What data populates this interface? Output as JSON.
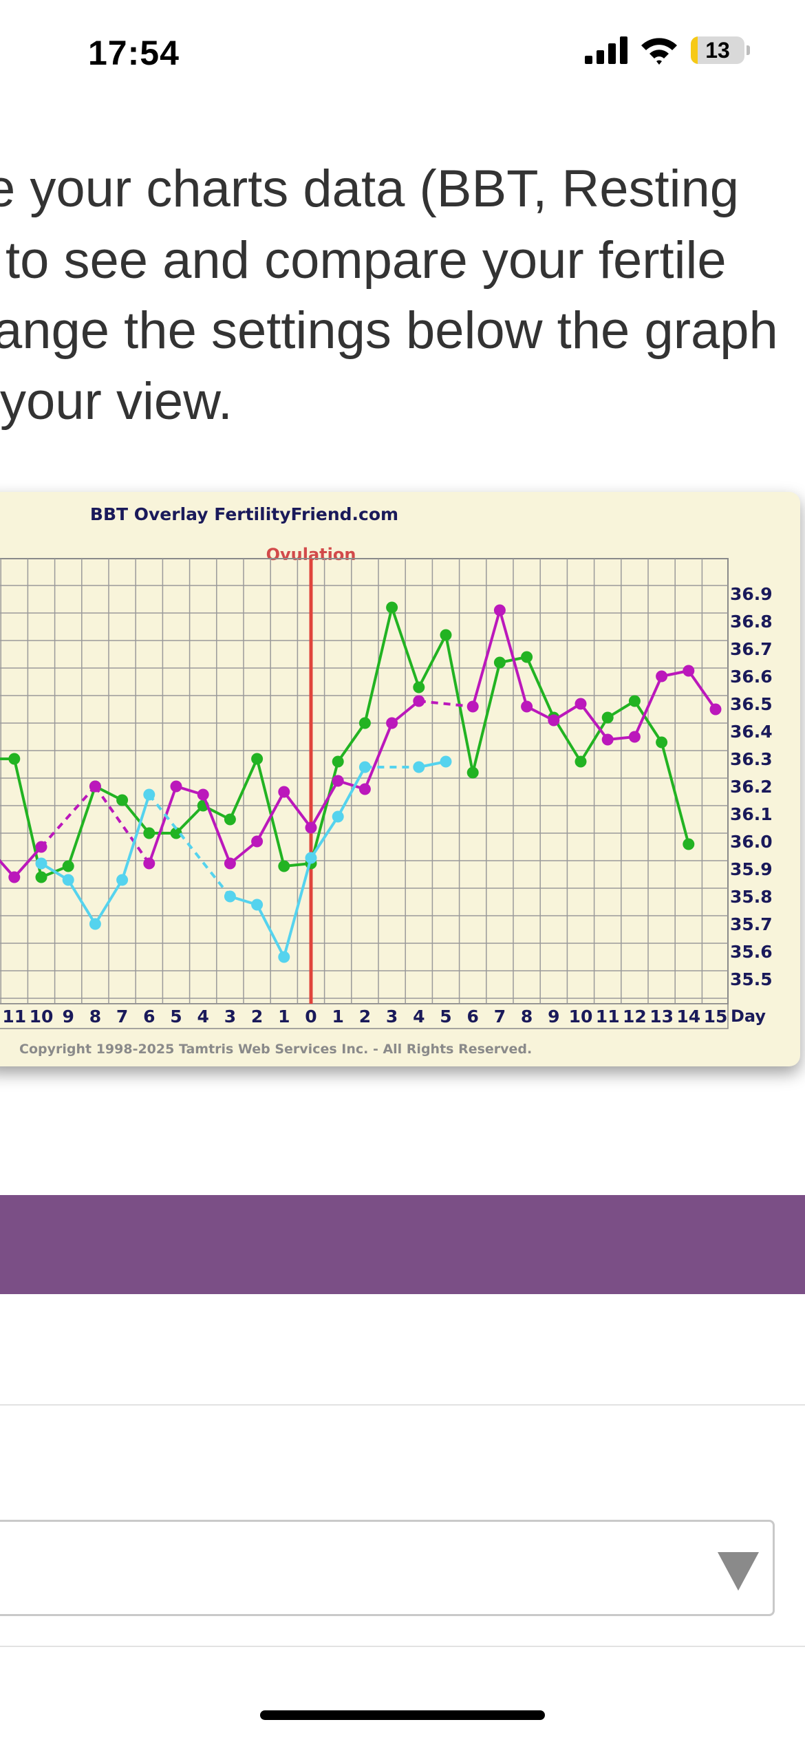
{
  "status_bar": {
    "time": "17:54",
    "battery_level": 13,
    "battery_text": "13",
    "battery_color": "#f6c915"
  },
  "intro": {
    "lines": [
      "e your charts data (BBT, Resting",
      " to see and compare your fertile",
      "ange the settings below the graph",
      " your view."
    ]
  },
  "chart": {
    "title": "BBT Overlay FertilityFriend.com",
    "ovulation_label": "Ovulation",
    "copyright": "Copyright 1998-2025 Tamtris Web Services Inc. - All Rights Reserved.",
    "day_axis_label": "Day"
  },
  "chart_data": {
    "type": "line",
    "title": "BBT Overlay FertilityFriend.com",
    "xlabel": "Day",
    "ylabel": "",
    "x_ticks": [
      -11,
      -10,
      -9,
      -8,
      -7,
      -6,
      -5,
      -4,
      -3,
      -2,
      -1,
      0,
      1,
      2,
      3,
      4,
      5,
      6,
      7,
      8,
      9,
      10,
      11,
      12,
      13,
      14,
      15
    ],
    "x_tick_labels": [
      "11",
      "10",
      "9",
      "8",
      "7",
      "6",
      "5",
      "4",
      "3",
      "2",
      "1",
      "0",
      "1",
      "2",
      "3",
      "4",
      "5",
      "6",
      "7",
      "8",
      "9",
      "10",
      "11",
      "12",
      "13",
      "14",
      "15"
    ],
    "y_ticks": [
      35.5,
      35.6,
      35.7,
      35.8,
      35.9,
      36.0,
      36.1,
      36.2,
      36.3,
      36.4,
      36.5,
      36.6,
      36.7,
      36.8,
      36.9
    ],
    "ylim": [
      35.4,
      37.0
    ],
    "ovulation_day": 0,
    "grid": true,
    "series": [
      {
        "color": "#22b322",
        "points": [
          [
            -12,
            36.3
          ],
          [
            -11,
            36.3
          ],
          [
            -10,
            35.87
          ],
          [
            -9,
            35.91
          ],
          [
            -8,
            36.2
          ],
          [
            -7,
            36.15
          ],
          [
            -6,
            36.03
          ],
          [
            -5,
            36.03
          ],
          [
            -4,
            36.13
          ],
          [
            -3,
            36.08
          ],
          [
            -2,
            36.3
          ],
          [
            -1,
            35.91
          ],
          [
            0,
            35.92
          ],
          [
            1,
            36.29
          ],
          [
            2,
            36.43
          ],
          [
            3,
            36.85
          ],
          [
            4,
            36.56
          ],
          [
            5,
            36.75
          ],
          [
            6,
            36.25
          ],
          [
            7,
            36.65
          ],
          [
            8,
            36.67
          ],
          [
            9,
            36.45
          ],
          [
            10,
            36.29
          ],
          [
            11,
            36.45
          ],
          [
            12,
            36.51
          ],
          [
            13,
            36.36
          ],
          [
            14,
            35.99
          ]
        ],
        "dashed_segments": []
      },
      {
        "color": "#bb18bb",
        "points": [
          [
            -12,
            35.98
          ],
          [
            -11,
            35.87
          ],
          [
            -10,
            35.98
          ],
          [
            -8,
            36.2
          ],
          [
            -6,
            35.92
          ],
          [
            -5,
            36.2
          ],
          [
            -4,
            36.17
          ],
          [
            -3,
            35.92
          ],
          [
            -2,
            36.0
          ],
          [
            -1,
            36.18
          ],
          [
            0,
            36.05
          ],
          [
            1,
            36.22
          ],
          [
            2,
            36.19
          ],
          [
            3,
            36.43
          ],
          [
            4,
            36.51
          ],
          [
            6,
            36.49
          ],
          [
            7,
            36.84
          ],
          [
            8,
            36.49
          ],
          [
            9,
            36.44
          ],
          [
            10,
            36.5
          ],
          [
            11,
            36.37
          ],
          [
            12,
            36.38
          ],
          [
            13,
            36.6
          ],
          [
            14,
            36.62
          ],
          [
            15,
            36.48
          ]
        ],
        "dashed_segments": [
          [
            -10,
            -8
          ],
          [
            -8,
            -6
          ],
          [
            4,
            6
          ]
        ]
      },
      {
        "color": "#55d3ee",
        "points": [
          [
            -10,
            35.92
          ],
          [
            -9,
            35.86
          ],
          [
            -8,
            35.7
          ],
          [
            -7,
            35.86
          ],
          [
            -6,
            36.17
          ],
          [
            -3,
            35.8
          ],
          [
            -2,
            35.77
          ],
          [
            -1,
            35.58
          ],
          [
            0,
            35.94
          ],
          [
            1,
            36.09
          ],
          [
            2,
            36.27
          ],
          [
            4,
            36.27
          ],
          [
            5,
            36.29
          ]
        ],
        "dashed_segments": [
          [
            -6,
            -3
          ],
          [
            2,
            4
          ]
        ]
      }
    ]
  },
  "controls": {
    "dropdown_value": ""
  }
}
